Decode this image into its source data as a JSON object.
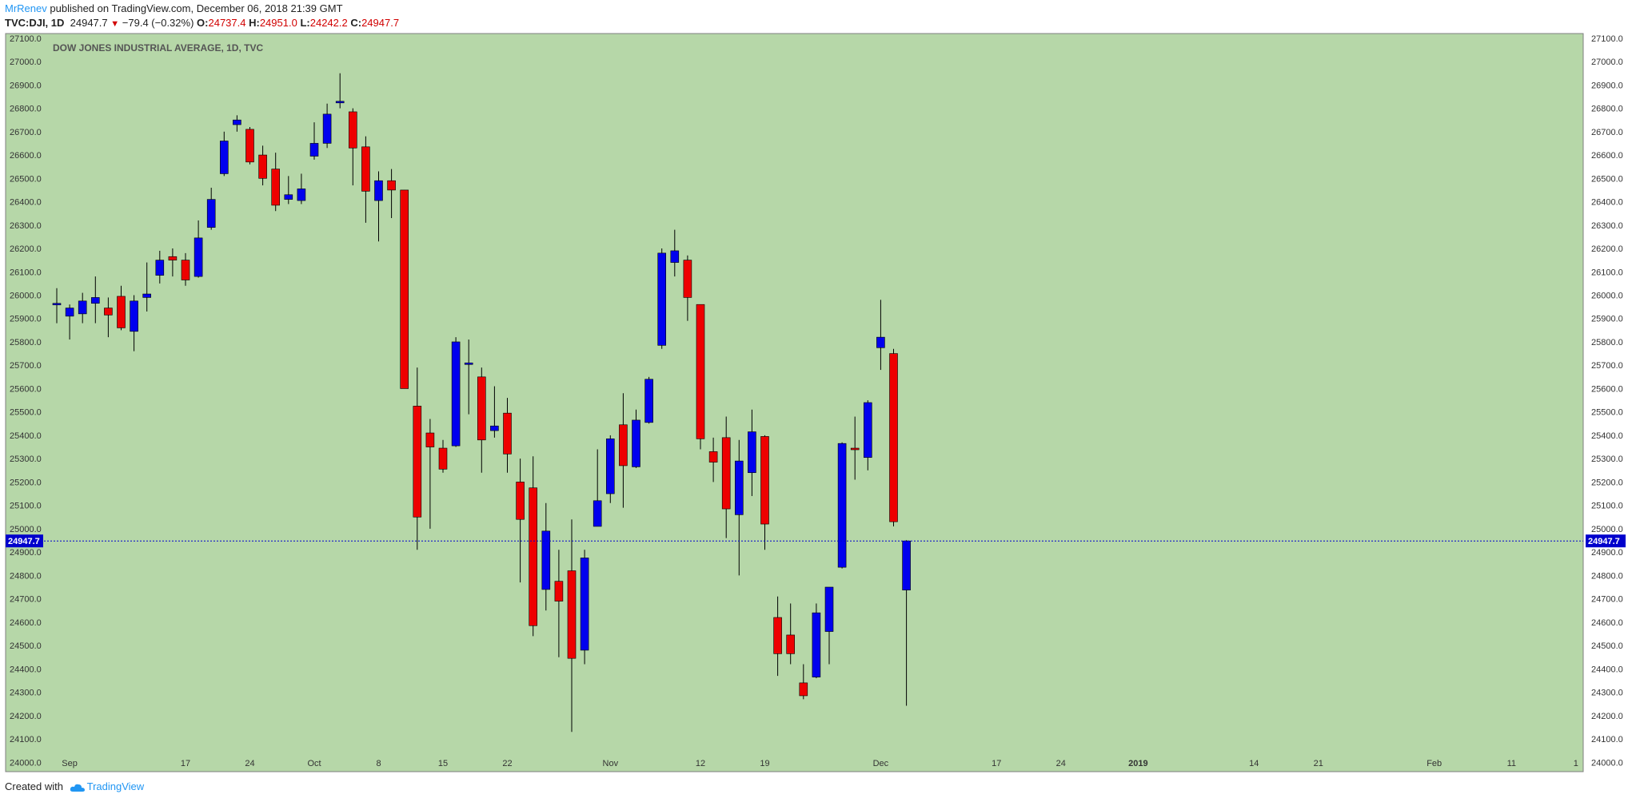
{
  "header": {
    "author": "MrRenev",
    "published_text": "published on TradingView.com, December 06, 2018 21:39 GMT",
    "symbol": "TVC:DJI, 1D",
    "last": "24947.7",
    "change": "−79.4 (−0.32%)",
    "open_label": "O:",
    "open": "24737.4",
    "high_label": "H:",
    "high": "24951.0",
    "low_label": "L:",
    "low": "24242.2",
    "close_label": "C:",
    "close": "24947.7"
  },
  "footer": {
    "created_with": "Created with",
    "brand": "TradingView"
  },
  "colors": {
    "background": "#b6d7a8",
    "up": "#0000ee",
    "down": "#ee0000",
    "price_line": "#0000cc"
  },
  "chart_data": {
    "type": "candlestick",
    "title": "DOW JONES INDUSTRIAL AVERAGE, 1D, TVC",
    "ylim": [
      23960,
      27120
    ],
    "y_ticks": [
      24000,
      24100,
      24200,
      24300,
      24400,
      24500,
      24600,
      24700,
      24800,
      24900,
      25000,
      25100,
      25200,
      25300,
      25400,
      25500,
      25600,
      25700,
      25800,
      25900,
      26000,
      26100,
      26200,
      26300,
      26400,
      26500,
      26600,
      26700,
      26800,
      26900,
      27000,
      27100
    ],
    "x_tick_labels": [
      {
        "label": "Sep",
        "bar": 1
      },
      {
        "label": "17",
        "bar": 10
      },
      {
        "label": "24",
        "bar": 15
      },
      {
        "label": "Oct",
        "bar": 20
      },
      {
        "label": "8",
        "bar": 25
      },
      {
        "label": "15",
        "bar": 30
      },
      {
        "label": "22",
        "bar": 35
      },
      {
        "label": "Nov",
        "bar": 43
      },
      {
        "label": "12",
        "bar": 50
      },
      {
        "label": "19",
        "bar": 55
      },
      {
        "label": "Dec",
        "bar": 64
      },
      {
        "label": "17",
        "bar": 73
      },
      {
        "label": "24",
        "bar": 78
      },
      {
        "label": "2019",
        "bar": 84
      },
      {
        "label": "14",
        "bar": 93
      },
      {
        "label": "21",
        "bar": 98
      },
      {
        "label": "Feb",
        "bar": 107
      },
      {
        "label": "11",
        "bar": 113
      },
      {
        "label": "1",
        "bar": 118
      }
    ],
    "last_price": 24947.7,
    "last_price_label": "24947.7",
    "candles": [
      {
        "o": 25965,
        "h": 26030,
        "l": 25880,
        "c": 25965
      },
      {
        "o": 25910,
        "h": 25960,
        "l": 25810,
        "c": 25945
      },
      {
        "o": 25920,
        "h": 26010,
        "l": 25880,
        "c": 25975
      },
      {
        "o": 25965,
        "h": 26080,
        "l": 25880,
        "c": 25990
      },
      {
        "o": 25945,
        "h": 25990,
        "l": 25820,
        "c": 25915
      },
      {
        "o": 25995,
        "h": 26040,
        "l": 25850,
        "c": 25860
      },
      {
        "o": 25845,
        "h": 26000,
        "l": 25760,
        "c": 25975
      },
      {
        "o": 25990,
        "h": 26140,
        "l": 25930,
        "c": 26005
      },
      {
        "o": 26085,
        "h": 26190,
        "l": 26050,
        "c": 26150
      },
      {
        "o": 26165,
        "h": 26200,
        "l": 26080,
        "c": 26150
      },
      {
        "o": 26150,
        "h": 26180,
        "l": 26040,
        "c": 26065
      },
      {
        "o": 26080,
        "h": 26320,
        "l": 26075,
        "c": 26245
      },
      {
        "o": 26290,
        "h": 26460,
        "l": 26280,
        "c": 26410
      },
      {
        "o": 26520,
        "h": 26700,
        "l": 26510,
        "c": 26660
      },
      {
        "o": 26730,
        "h": 26770,
        "l": 26700,
        "c": 26750
      },
      {
        "o": 26710,
        "h": 26720,
        "l": 26560,
        "c": 26570
      },
      {
        "o": 26600,
        "h": 26640,
        "l": 26470,
        "c": 26500
      },
      {
        "o": 26540,
        "h": 26610,
        "l": 26360,
        "c": 26385
      },
      {
        "o": 26410,
        "h": 26510,
        "l": 26390,
        "c": 26430
      },
      {
        "o": 26405,
        "h": 26520,
        "l": 26390,
        "c": 26455
      },
      {
        "o": 26595,
        "h": 26740,
        "l": 26580,
        "c": 26650
      },
      {
        "o": 26650,
        "h": 26820,
        "l": 26630,
        "c": 26775
      },
      {
        "o": 26830,
        "h": 26950,
        "l": 26800,
        "c": 26830
      },
      {
        "o": 26785,
        "h": 26800,
        "l": 26470,
        "c": 26630
      },
      {
        "o": 26635,
        "h": 26680,
        "l": 26310,
        "c": 26445
      },
      {
        "o": 26405,
        "h": 26530,
        "l": 26230,
        "c": 26490
      },
      {
        "o": 26490,
        "h": 26540,
        "l": 26330,
        "c": 26450
      },
      {
        "o": 26450,
        "h": 26450,
        "l": 25600,
        "c": 25600
      },
      {
        "o": 25525,
        "h": 25690,
        "l": 24910,
        "c": 25050
      },
      {
        "o": 25410,
        "h": 25470,
        "l": 25000,
        "c": 25350
      },
      {
        "o": 25345,
        "h": 25380,
        "l": 25240,
        "c": 25255
      },
      {
        "o": 25355,
        "h": 25820,
        "l": 25350,
        "c": 25800
      },
      {
        "o": 25710,
        "h": 25810,
        "l": 25490,
        "c": 25710
      },
      {
        "o": 25650,
        "h": 25690,
        "l": 25240,
        "c": 25380
      },
      {
        "o": 25420,
        "h": 25610,
        "l": 25390,
        "c": 25440
      },
      {
        "o": 25495,
        "h": 25560,
        "l": 25240,
        "c": 25320
      },
      {
        "o": 25200,
        "h": 25300,
        "l": 24770,
        "c": 25040
      },
      {
        "o": 25175,
        "h": 25310,
        "l": 24540,
        "c": 24585
      },
      {
        "o": 24740,
        "h": 25110,
        "l": 24650,
        "c": 24990
      },
      {
        "o": 24775,
        "h": 24910,
        "l": 24450,
        "c": 24690
      },
      {
        "o": 24820,
        "h": 25040,
        "l": 24130,
        "c": 24445
      },
      {
        "o": 24480,
        "h": 24910,
        "l": 24420,
        "c": 24875
      },
      {
        "o": 25010,
        "h": 25340,
        "l": 25010,
        "c": 25120
      },
      {
        "o": 25150,
        "h": 25400,
        "l": 25110,
        "c": 25385
      },
      {
        "o": 25445,
        "h": 25580,
        "l": 25090,
        "c": 25270
      },
      {
        "o": 25265,
        "h": 25510,
        "l": 25260,
        "c": 25465
      },
      {
        "o": 25455,
        "h": 25650,
        "l": 25450,
        "c": 25640
      },
      {
        "o": 25785,
        "h": 26200,
        "l": 25770,
        "c": 26180
      },
      {
        "o": 26140,
        "h": 26280,
        "l": 26080,
        "c": 26190
      },
      {
        "o": 26150,
        "h": 26170,
        "l": 25890,
        "c": 25990
      },
      {
        "o": 25960,
        "h": 25960,
        "l": 25340,
        "c": 25385
      },
      {
        "o": 25330,
        "h": 25390,
        "l": 25200,
        "c": 25285
      },
      {
        "o": 25390,
        "h": 25480,
        "l": 24960,
        "c": 25085
      },
      {
        "o": 25060,
        "h": 25380,
        "l": 24800,
        "c": 25290
      },
      {
        "o": 25240,
        "h": 25510,
        "l": 25140,
        "c": 25415
      },
      {
        "o": 25395,
        "h": 25400,
        "l": 24910,
        "c": 25020
      },
      {
        "o": 24620,
        "h": 24710,
        "l": 24370,
        "c": 24465
      },
      {
        "o": 24545,
        "h": 24680,
        "l": 24420,
        "c": 24465
      },
      {
        "o": 24340,
        "h": 24420,
        "l": 24270,
        "c": 24285
      },
      {
        "o": 24365,
        "h": 24680,
        "l": 24360,
        "c": 24640
      },
      {
        "o": 24560,
        "h": 24750,
        "l": 24420,
        "c": 24750
      },
      {
        "o": 24835,
        "h": 25370,
        "l": 24830,
        "c": 25365
      },
      {
        "o": 25345,
        "h": 25480,
        "l": 25210,
        "c": 25340
      },
      {
        "o": 25305,
        "h": 25550,
        "l": 25250,
        "c": 25540
      },
      {
        "o": 25775,
        "h": 25980,
        "l": 25680,
        "c": 25820
      },
      {
        "o": 25750,
        "h": 25770,
        "l": 25010,
        "c": 25030
      },
      {
        "o": 24737.4,
        "h": 24951.0,
        "l": 24242.2,
        "c": 24947.7
      }
    ]
  }
}
